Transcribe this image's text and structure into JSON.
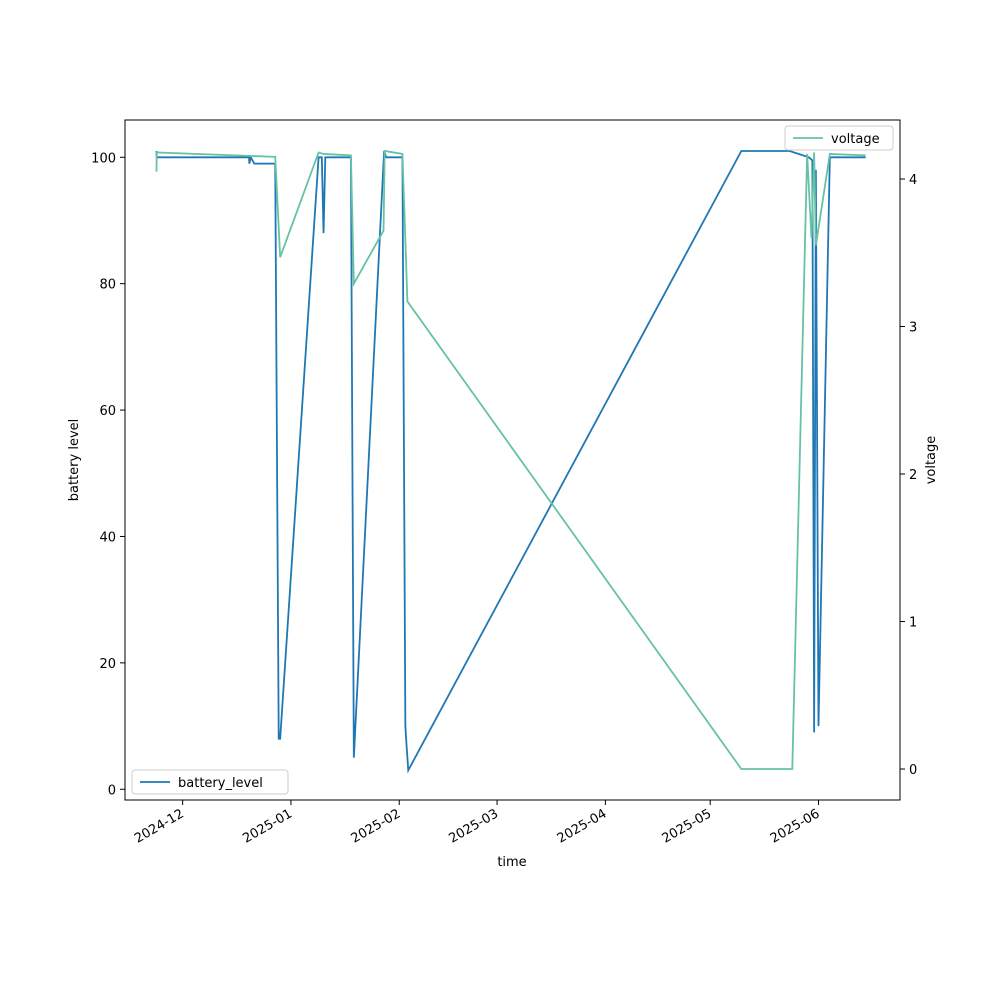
{
  "chart_data": {
    "type": "line",
    "xlabel": "time",
    "ylabel": "battery level",
    "y2label": "voltage",
    "xlim": [
      "2024-11-14T12:00",
      "2025-06-24T08:00"
    ],
    "xticks": [
      {
        "value": "2024-12-01",
        "label": "2024-12"
      },
      {
        "value": "2025-01-01",
        "label": "2025-01"
      },
      {
        "value": "2025-02-01",
        "label": "2025-02"
      },
      {
        "value": "2025-03-01",
        "label": "2025-03"
      },
      {
        "value": "2025-04-01",
        "label": "2025-04"
      },
      {
        "value": "2025-05-01",
        "label": "2025-05"
      },
      {
        "value": "2025-06-01",
        "label": "2025-06"
      }
    ],
    "ylim": [
      -1.7,
      105.9
    ],
    "yticks": [
      0,
      20,
      40,
      60,
      80,
      100
    ],
    "y2lim": [
      -0.21,
      4.4
    ],
    "y2ticks": [
      0,
      1,
      2,
      3,
      4
    ],
    "series": [
      {
        "name": "battery_level",
        "color": "#1f77b4",
        "legend": "lower left",
        "x": [
          "2024-11-23T12:00",
          "2024-11-23T14:00",
          "2024-12-20T00:00",
          "2024-12-20T02:00",
          "2024-12-20T12:00",
          "2024-12-21T12:00",
          "2024-12-27T12:00",
          "2024-12-28T12:00",
          "2024-12-28T22:00",
          "2025-01-08T22:00",
          "2025-01-09T20:00",
          "2025-01-10T08:00",
          "2025-01-10T20:00",
          "2025-01-18T04:00",
          "2025-01-19T00:00",
          "2025-01-27T16:00",
          "2025-01-28T06:00",
          "2025-02-01T22:00",
          "2025-02-02T18:00",
          "2025-02-03T02:00",
          "2025-02-03T14:00",
          "2025-05-09T22:00",
          "2025-05-23T18:00",
          "2025-05-29T06:00",
          "2025-05-30T06:00",
          "2025-05-30T18:00",
          "2025-05-31T06:00",
          "2025-06-01T00:00",
          "2025-06-04T06:00",
          "2025-06-14T12:00"
        ],
        "values": [
          101,
          100,
          100,
          99,
          100,
          99,
          99,
          8,
          8,
          100,
          100,
          88,
          100,
          100,
          5,
          101,
          100,
          100,
          10,
          7,
          3,
          101,
          101,
          100,
          99.5,
          9,
          98,
          10,
          100,
          100
        ]
      },
      {
        "name": "voltage",
        "color": "#66c2a5",
        "axis": "y2",
        "legend": "upper right",
        "x": [
          "2024-11-23T12:00",
          "2024-11-23T14:00",
          "2024-12-27T12:00",
          "2024-12-28T22:00",
          "2025-01-08T22:00",
          "2025-01-10T08:00",
          "2025-01-18T04:00",
          "2025-01-19T00:00",
          "2025-01-27T12:00",
          "2025-01-27T20:00",
          "2025-02-01T22:00",
          "2025-02-03T08:00",
          "2025-05-09T22:00",
          "2025-05-24T12:00",
          "2025-05-28T18:00",
          "2025-05-30T00:00",
          "2025-05-30T18:00",
          "2025-05-31T06:00",
          "2025-06-04T06:00",
          "2025-06-14T12:00"
        ],
        "values": [
          4.05,
          4.18,
          4.15,
          3.47,
          4.18,
          4.17,
          4.16,
          3.29,
          3.65,
          4.19,
          4.17,
          3.17,
          0,
          0,
          4.17,
          3.6,
          4.18,
          3.55,
          4.17,
          4.16
        ]
      }
    ]
  }
}
